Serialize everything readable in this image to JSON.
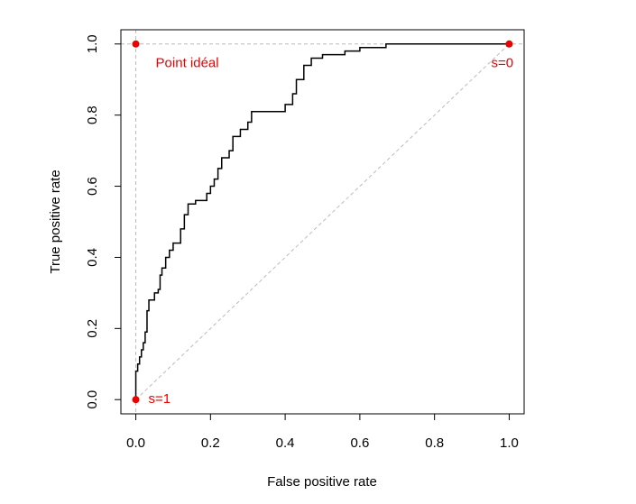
{
  "chart_data": {
    "type": "line",
    "xlabel": "False positive rate",
    "ylabel": "True positive rate",
    "xlim": [
      -0.04,
      1.04
    ],
    "ylim": [
      -0.04,
      1.04
    ],
    "xticks": [
      {
        "value": 0,
        "label": "0.0"
      },
      {
        "value": 0.2,
        "label": "0.2"
      },
      {
        "value": 0.4,
        "label": "0.4"
      },
      {
        "value": 0.6,
        "label": "0.6"
      },
      {
        "value": 0.8,
        "label": "0.8"
      },
      {
        "value": 1,
        "label": "1.0"
      }
    ],
    "yticks": [
      {
        "value": 0,
        "label": "0.0"
      },
      {
        "value": 0.2,
        "label": "0.2"
      },
      {
        "value": 0.4,
        "label": "0.4"
      },
      {
        "value": 0.6,
        "label": "0.6"
      },
      {
        "value": 0.8,
        "label": "0.8"
      },
      {
        "value": 1,
        "label": "1.0"
      }
    ],
    "series": [
      {
        "color": "#000000",
        "x": [
          0,
          0,
          0.005,
          0.005,
          0.01,
          0.01,
          0.015,
          0.015,
          0.02,
          0.02,
          0.025,
          0.025,
          0.03,
          0.03,
          0.035,
          0.035,
          0.05,
          0.05,
          0.06,
          0.06,
          0.065,
          0.065,
          0.07,
          0.07,
          0.08,
          0.08,
          0.09,
          0.09,
          0.1,
          0.1,
          0.12,
          0.12,
          0.13,
          0.13,
          0.14,
          0.14,
          0.16,
          0.16,
          0.19,
          0.19,
          0.2,
          0.2,
          0.21,
          0.21,
          0.22,
          0.22,
          0.23,
          0.23,
          0.25,
          0.25,
          0.26,
          0.26,
          0.28,
          0.28,
          0.3,
          0.3,
          0.31,
          0.31,
          0.4,
          0.4,
          0.42,
          0.42,
          0.43,
          0.43,
          0.45,
          0.45,
          0.47,
          0.47,
          0.5,
          0.5,
          0.56,
          0.56,
          0.6,
          0.6,
          0.67,
          0.67,
          1
        ],
        "values": [
          0,
          0.08,
          0.08,
          0.1,
          0.1,
          0.12,
          0.12,
          0.14,
          0.14,
          0.16,
          0.16,
          0.19,
          0.19,
          0.25,
          0.25,
          0.28,
          0.28,
          0.3,
          0.3,
          0.31,
          0.31,
          0.35,
          0.35,
          0.37,
          0.37,
          0.4,
          0.4,
          0.42,
          0.42,
          0.44,
          0.44,
          0.48,
          0.48,
          0.52,
          0.52,
          0.55,
          0.55,
          0.56,
          0.56,
          0.58,
          0.58,
          0.6,
          0.6,
          0.62,
          0.62,
          0.65,
          0.65,
          0.68,
          0.68,
          0.7,
          0.7,
          0.74,
          0.74,
          0.76,
          0.76,
          0.78,
          0.78,
          0.81,
          0.81,
          0.83,
          0.83,
          0.86,
          0.86,
          0.9,
          0.9,
          0.94,
          0.94,
          0.96,
          0.96,
          0.97,
          0.97,
          0.98,
          0.98,
          0.99,
          0.99,
          1,
          1
        ]
      }
    ],
    "points": [
      {
        "x": 0,
        "y": 1,
        "label": "Point idéal",
        "color": "#ee0000"
      },
      {
        "x": 1,
        "y": 1,
        "label": "s=0",
        "color": "#ee0000"
      },
      {
        "x": 0,
        "y": 0,
        "label": "s=1",
        "color": "#ee0000"
      }
    ],
    "reference_color": "#bbbbbb"
  }
}
